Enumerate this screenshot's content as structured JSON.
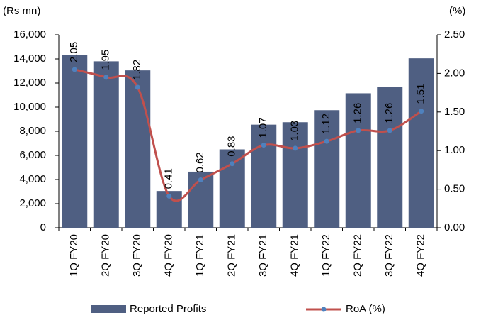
{
  "chart_data": {
    "type": "bar-line",
    "y_label": "(Rs mn)",
    "y2_label": "(%)",
    "categories": [
      "1Q FY20",
      "2Q FY20",
      "3Q FY20",
      "4Q FY20",
      "1Q FY21",
      "2Q FY21",
      "3Q FY21",
      "4Q FY21",
      "1Q FY22",
      "2Q FY22",
      "3Q FY22",
      "4Q FY22"
    ],
    "series": [
      {
        "name": "Reported Profits",
        "type": "bar",
        "color": "#4f5f82",
        "values": [
          14350,
          13800,
          13050,
          3050,
          4650,
          6500,
          8550,
          8750,
          9750,
          11150,
          11650,
          14050
        ]
      },
      {
        "name": "RoA (%)",
        "type": "line",
        "axis": "y2",
        "color": "#c0504d",
        "marker_color": "#4f81bd",
        "values": [
          2.05,
          1.95,
          1.82,
          0.41,
          0.62,
          0.83,
          1.07,
          1.03,
          1.12,
          1.26,
          1.26,
          1.51
        ]
      }
    ],
    "ylim": [
      0,
      16000
    ],
    "yticks": [
      0,
      {
        "value": 2000,
        "label": "2,000"
      },
      {
        "value": 4000,
        "label": "4,000"
      },
      {
        "value": 6000,
        "label": "6,000"
      },
      {
        "value": 8000,
        "label": "8,000"
      },
      {
        "value": 10000,
        "label": "10,000"
      },
      {
        "value": 12000,
        "label": "12,000"
      },
      {
        "value": 14000,
        "label": "14,000"
      },
      {
        "value": 16000,
        "label": "16,000"
      }
    ],
    "y2lim": [
      0,
      2.5
    ],
    "y2ticks": [
      {
        "value": 0,
        "label": "0.00"
      },
      {
        "value": 0.5,
        "label": "0.50"
      },
      {
        "value": 1,
        "label": "1.00"
      },
      {
        "value": 1.5,
        "label": "1.50"
      },
      {
        "value": 2,
        "label": "2.00"
      },
      {
        "value": 2.5,
        "label": "2.50"
      }
    ],
    "legend": "bottom"
  }
}
